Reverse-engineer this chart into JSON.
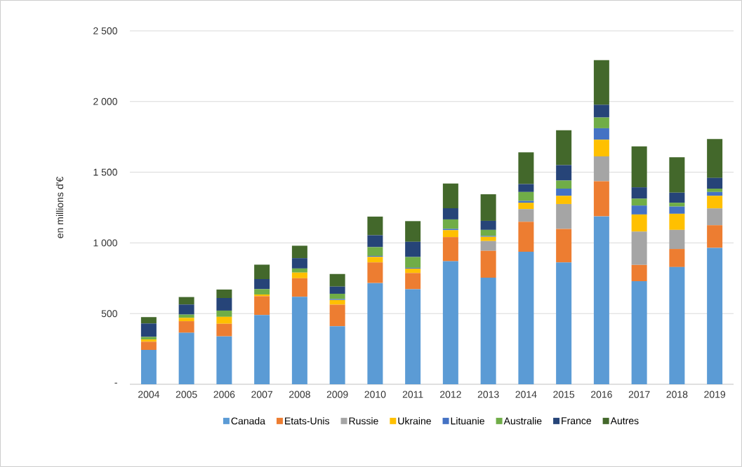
{
  "chart_data": {
    "type": "bar",
    "stacked": true,
    "ylabel": "en millions d'€",
    "categories": [
      "2004",
      "2005",
      "2006",
      "2007",
      "2008",
      "2009",
      "2010",
      "2011",
      "2012",
      "2013",
      "2014",
      "2015",
      "2016",
      "2017",
      "2018",
      "2019"
    ],
    "series": [
      {
        "name": "Canada",
        "color": "#5b9bd5",
        "values": [
          243,
          364,
          339,
          490,
          619,
          411,
          716,
          672,
          870,
          754,
          938,
          862,
          1188,
          729,
          829,
          965
        ]
      },
      {
        "name": "Etats-Unis",
        "color": "#ed7d31",
        "values": [
          58,
          82,
          89,
          133,
          131,
          152,
          146,
          115,
          171,
          190,
          212,
          237,
          248,
          115,
          128,
          160
        ]
      },
      {
        "name": "Russie",
        "color": "#a5a5a5",
        "values": [
          0,
          0,
          0,
          0,
          0,
          0,
          0,
          0,
          0,
          69,
          89,
          176,
          176,
          236,
          135,
          119
        ]
      },
      {
        "name": "Ukraine",
        "color": "#ffc000",
        "values": [
          16,
          24,
          49,
          12,
          40,
          33,
          39,
          31,
          49,
          30,
          45,
          58,
          118,
          121,
          114,
          89
        ]
      },
      {
        "name": "Lituanie",
        "color": "#4472c4",
        "values": [
          0,
          0,
          0,
          0,
          0,
          7,
          7,
          6,
          9,
          6,
          13,
          51,
          81,
          63,
          51,
          27
        ]
      },
      {
        "name": "Australie",
        "color": "#70ad47",
        "values": [
          18,
          23,
          44,
          38,
          29,
          37,
          62,
          76,
          67,
          43,
          63,
          57,
          76,
          49,
          27,
          24
        ]
      },
      {
        "name": "France",
        "color": "#264478",
        "values": [
          95,
          71,
          89,
          71,
          73,
          51,
          84,
          108,
          79,
          64,
          56,
          109,
          90,
          80,
          71,
          76
        ]
      },
      {
        "name": "Autres",
        "color": "#43682b",
        "values": [
          45,
          53,
          60,
          102,
          88,
          89,
          132,
          146,
          175,
          188,
          224,
          247,
          316,
          290,
          251,
          275
        ]
      }
    ],
    "ylim": [
      0,
      2500
    ],
    "yticks": [
      {
        "value": 0,
        "label": "-"
      },
      500,
      {
        "value": 1000,
        "label": "1 000"
      },
      {
        "value": 1500,
        "label": "1 500"
      },
      {
        "value": 2000,
        "label": "2 000"
      },
      {
        "value": 2500,
        "label": "2 500"
      }
    ],
    "grid": "y",
    "legend": "bottom"
  }
}
